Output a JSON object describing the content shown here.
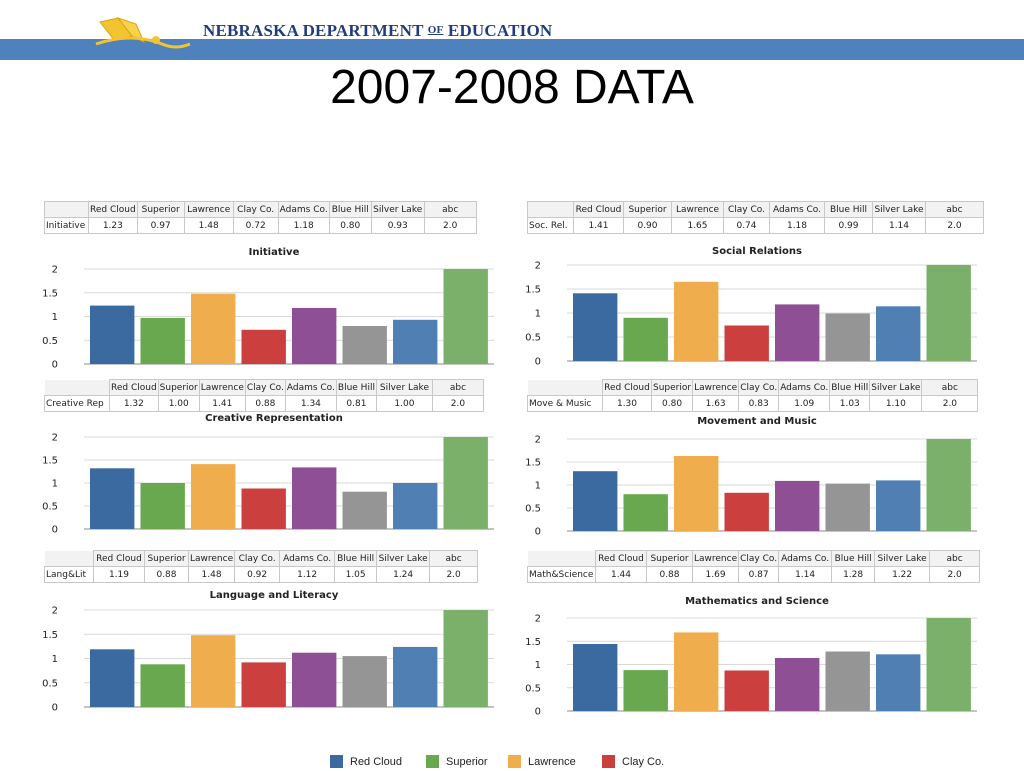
{
  "header": {
    "org": "NEBRASKA DEPARTMENT OF EDUCATION",
    "org_part1": "NEBRASKA DEPARTMENT ",
    "org_of": "OF",
    "org_part2": " EDUCATION",
    "band_color": "#4f81bd",
    "logo_icon": "book-with-swoosh-logo"
  },
  "slide_title": "2007-2008 DATA",
  "colors": {
    "Red Cloud": "#3b6aa0",
    "Superior": "#6aa84f",
    "Lawrence": "#f0ad4e",
    "Clay Co.": "#cc3f3f",
    "Adams Co.": "#8e4f94",
    "Blue Hill": "#959595",
    "Silver Lake": "#4f7fb3",
    "abc": "#7bb06a"
  },
  "legend": [
    "Red Cloud",
    "Superior",
    "Lawrence",
    "Clay Co."
  ],
  "chart_data": [
    {
      "type": "bar",
      "title": "Initiative",
      "row_label": "Initiative",
      "categories": [
        "Red Cloud",
        "Superior",
        "Lawrence",
        "Clay Co.",
        "Adams Co.",
        "Blue Hill",
        "Silver Lake",
        "abc"
      ],
      "value_labels": [
        "1.23",
        "0.97",
        "1.48",
        "0.72",
        "1.18",
        "0.80",
        "0.93",
        "2.0"
      ],
      "values": [
        1.23,
        0.97,
        1.48,
        0.72,
        1.18,
        0.8,
        0.93,
        2.0
      ],
      "yticks": [
        "0",
        "0.5",
        "1",
        "1.5",
        "2"
      ],
      "ylim": [
        0,
        2
      ],
      "xlabel": "",
      "ylabel": ""
    },
    {
      "type": "bar",
      "title": "Social Relations",
      "row_label": "Soc. Rel.",
      "categories": [
        "Red Cloud",
        "Superior",
        "Lawrence",
        "Clay Co.",
        "Adams Co.",
        "Blue Hill",
        "Silver Lake",
        "abc"
      ],
      "value_labels": [
        "1.41",
        "0.90",
        "1.65",
        "0.74",
        "1.18",
        "0.99",
        "1.14",
        "2.0"
      ],
      "values": [
        1.41,
        0.9,
        1.65,
        0.74,
        1.18,
        0.99,
        1.14,
        2.0
      ],
      "yticks": [
        "0",
        "0.5",
        "1",
        "1.5",
        "2"
      ],
      "ylim": [
        0,
        2
      ],
      "xlabel": "",
      "ylabel": ""
    },
    {
      "type": "bar",
      "title": "Creative Representation",
      "row_label": "Creative Rep",
      "categories": [
        "Red Cloud",
        "Superior",
        "Lawrence",
        "Clay Co.",
        "Adams Co.",
        "Blue Hill",
        "Silver Lake",
        "abc"
      ],
      "value_labels": [
        "1.32",
        "1.00",
        "1.41",
        "0.88",
        "1.34",
        "0.81",
        "1.00",
        "2.0"
      ],
      "values": [
        1.32,
        1.0,
        1.41,
        0.88,
        1.34,
        0.81,
        1.0,
        2.0
      ],
      "yticks": [
        "0",
        "0.5",
        "1",
        "1.5",
        "2"
      ],
      "ylim": [
        0,
        2
      ],
      "xlabel": "",
      "ylabel": ""
    },
    {
      "type": "bar",
      "title": "Movement and Music",
      "row_label": "Move & Music",
      "categories": [
        "Red Cloud",
        "Superior",
        "Lawrence",
        "Clay Co.",
        "Adams Co.",
        "Blue Hill",
        "Silver Lake",
        "abc"
      ],
      "value_labels": [
        "1.30",
        "0.80",
        "1.63",
        "0.83",
        "1.09",
        "1.03",
        "1.10",
        "2.0"
      ],
      "values": [
        1.3,
        0.8,
        1.63,
        0.83,
        1.09,
        1.03,
        1.1,
        2.0
      ],
      "yticks": [
        "0",
        "0.5",
        "1",
        "1.5",
        "2"
      ],
      "ylim": [
        0,
        2
      ],
      "xlabel": "",
      "ylabel": ""
    },
    {
      "type": "bar",
      "title": "Language and Literacy",
      "row_label": "Lang&Lit",
      "categories": [
        "Red Cloud",
        "Superior",
        "Lawrence",
        "Clay Co.",
        "Adams Co.",
        "Blue Hill",
        "Silver Lake",
        "abc"
      ],
      "value_labels": [
        "1.19",
        "0.88",
        "1.48",
        "0.92",
        "1.12",
        "1.05",
        "1.24",
        "2.0"
      ],
      "values": [
        1.19,
        0.88,
        1.48,
        0.92,
        1.12,
        1.05,
        1.24,
        2.0
      ],
      "yticks": [
        "0",
        "0.5",
        "1",
        "1.5",
        "2"
      ],
      "ylim": [
        0,
        2
      ],
      "xlabel": "",
      "ylabel": ""
    },
    {
      "type": "bar",
      "title": "Mathematics and Science",
      "row_label": "Math&Science",
      "categories": [
        "Red Cloud",
        "Superior",
        "Lawrence",
        "Clay Co.",
        "Adams Co.",
        "Blue Hill",
        "Silver Lake",
        "abc"
      ],
      "value_labels": [
        "1.44",
        "0.88",
        "1.69",
        "0.87",
        "1.14",
        "1.28",
        "1.22",
        "2.0"
      ],
      "values": [
        1.44,
        0.88,
        1.69,
        0.87,
        1.14,
        1.28,
        1.22,
        2.0
      ],
      "yticks": [
        "0",
        "0.5",
        "1",
        "1.5",
        "2"
      ],
      "ylim": [
        0,
        2
      ],
      "xlabel": "",
      "ylabel": ""
    }
  ]
}
